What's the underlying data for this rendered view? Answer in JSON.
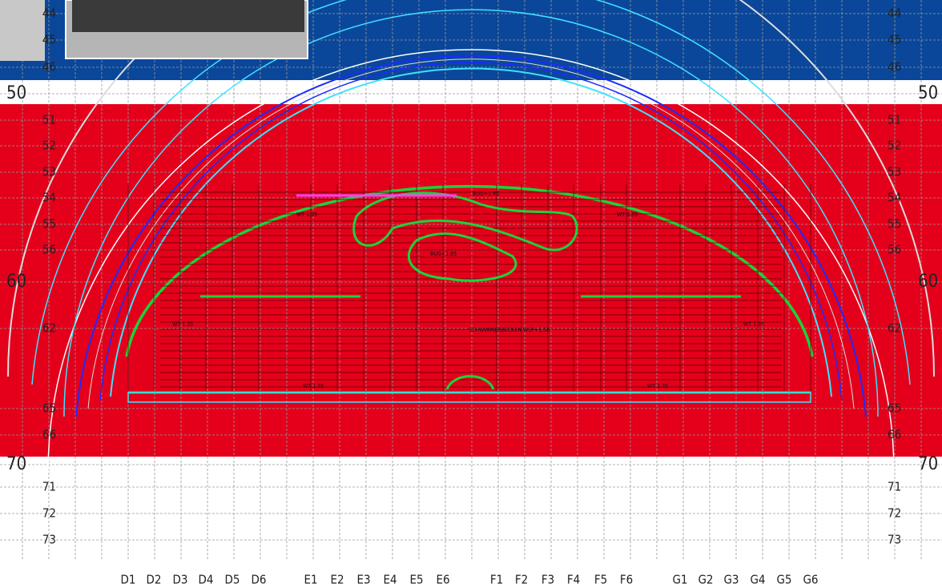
{
  "rows": [
    "44",
    "45",
    "46",
    "50",
    "51",
    "52",
    "53",
    "54",
    "55",
    "56",
    "60",
    "62",
    "65",
    "66",
    "70",
    "71",
    "72",
    "73"
  ],
  "columns": [
    "D1",
    "D2",
    "D3",
    "D4",
    "D5",
    "D6",
    "E1",
    "E2",
    "E3",
    "E4",
    "E5",
    "E6",
    "F1",
    "F2",
    "F3",
    "F4",
    "F5",
    "F6",
    "G1",
    "G2",
    "G3",
    "G4",
    "G5",
    "G6"
  ],
  "annotations": [
    "WT 1.35",
    "WT 1.35",
    "WT 1.35",
    "WT 1.35",
    "WT 1.35",
    "WT 1.35",
    "BUG+1.85",
    "BUG+1.85",
    "SCHWIMMERBECKEN WSP+1.50"
  ]
}
